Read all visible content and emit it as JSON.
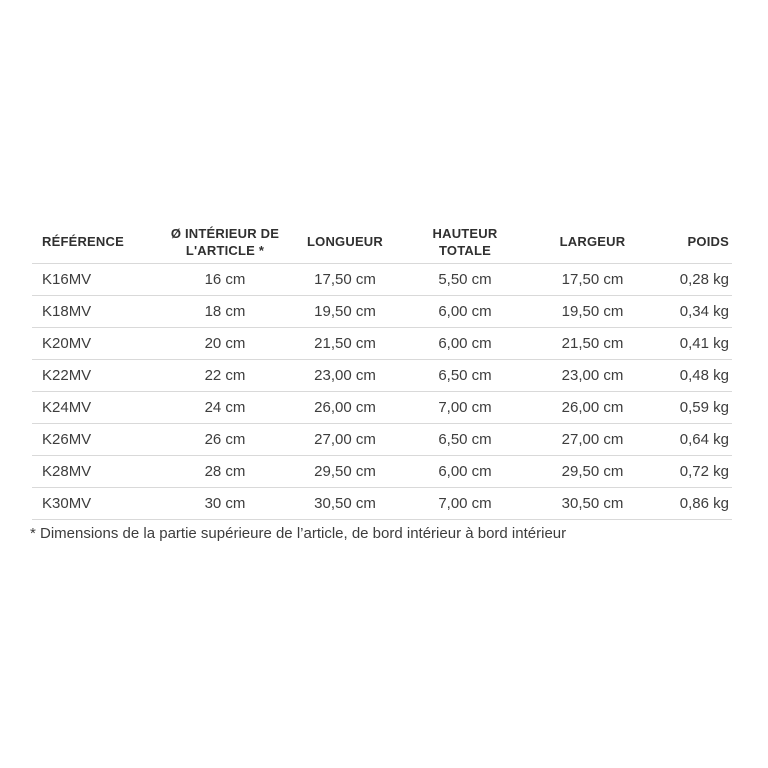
{
  "colors": {
    "background": "#ffffff",
    "text": "#3d3d3d",
    "header_text": "#303030",
    "border": "#d9d9d9"
  },
  "table": {
    "columns": [
      {
        "key": "reference",
        "label": "RÉFÉRENCE",
        "align": "left"
      },
      {
        "key": "diametre_interieur",
        "label": "Ø INTÉRIEUR DE L'ARTICLE *",
        "align": "center"
      },
      {
        "key": "longueur",
        "label": "LONGUEUR",
        "align": "center"
      },
      {
        "key": "hauteur_totale",
        "label": "HAUTEUR TOTALE",
        "align": "center"
      },
      {
        "key": "largeur",
        "label": "LARGEUR",
        "align": "center"
      },
      {
        "key": "poids",
        "label": "POIDS",
        "align": "right"
      }
    ],
    "rows": [
      [
        "K16MV",
        "16 cm",
        "17,50 cm",
        "5,50 cm",
        "17,50 cm",
        "0,28 kg"
      ],
      [
        "K18MV",
        "18 cm",
        "19,50 cm",
        "6,00 cm",
        "19,50 cm",
        "0,34 kg"
      ],
      [
        "K20MV",
        "20 cm",
        "21,50 cm",
        "6,00 cm",
        "21,50 cm",
        "0,41 kg"
      ],
      [
        "K22MV",
        "22 cm",
        "23,00 cm",
        "6,50 cm",
        "23,00 cm",
        "0,48 kg"
      ],
      [
        "K24MV",
        "24 cm",
        "26,00 cm",
        "7,00 cm",
        "26,00 cm",
        "0,59 kg"
      ],
      [
        "K26MV",
        "26 cm",
        "27,00 cm",
        "6,50 cm",
        "27,00 cm",
        "0,64 kg"
      ],
      [
        "K28MV",
        "28 cm",
        "29,50 cm",
        "6,00 cm",
        "29,50 cm",
        "0,72 kg"
      ],
      [
        "K30MV",
        "30 cm",
        "30,50 cm",
        "7,00 cm",
        "30,50 cm",
        "0,86 kg"
      ]
    ]
  },
  "footnote": "* Dimensions de la partie supérieure de l’article, de bord intérieur à bord intérieur"
}
